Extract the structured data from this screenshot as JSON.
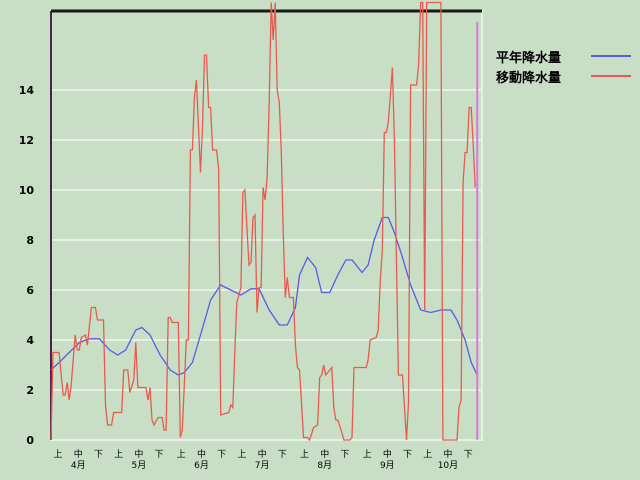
{
  "chart_data": {
    "type": "line",
    "title": "",
    "xlabel": "",
    "ylabel": "",
    "ylim": [
      0,
      17.2
    ],
    "yticks": [
      0,
      2,
      4,
      6,
      8,
      10,
      12,
      14
    ],
    "grid": true,
    "legend_position": "right",
    "x_dekad_labels": [
      "上",
      "中",
      "下"
    ],
    "x_months": [
      {
        "month": 4,
        "label": "4月"
      },
      {
        "month": 5,
        "label": "5月"
      },
      {
        "month": 6,
        "label": "6月"
      },
      {
        "month": 7,
        "label": "7月"
      },
      {
        "month": 8,
        "label": "8月"
      },
      {
        "month": 9,
        "label": "9月"
      },
      {
        "month": 10,
        "label": "10月"
      }
    ],
    "marker_date": "10-29",
    "series": [
      {
        "name": "平年降水量",
        "color": "#5a5ae6",
        "points": [
          [
            "04-01",
            2.8
          ],
          [
            "04-05",
            3.1
          ],
          [
            "04-10",
            3.5
          ],
          [
            "04-15",
            3.9
          ],
          [
            "04-20",
            4.05
          ],
          [
            "04-25",
            4.05
          ],
          [
            "04-30",
            3.6
          ],
          [
            "05-04",
            3.4
          ],
          [
            "05-08",
            3.6
          ],
          [
            "05-13",
            4.4
          ],
          [
            "05-16",
            4.5
          ],
          [
            "05-20",
            4.2
          ],
          [
            "05-25",
            3.4
          ],
          [
            "05-30",
            2.8
          ],
          [
            "06-03",
            2.6
          ],
          [
            "06-06",
            2.7
          ],
          [
            "06-10",
            3.1
          ],
          [
            "06-14",
            4.2
          ],
          [
            "06-19",
            5.6
          ],
          [
            "06-24",
            6.2
          ],
          [
            "06-29",
            6.0
          ],
          [
            "07-04",
            5.8
          ],
          [
            "07-09",
            6.05
          ],
          [
            "07-13",
            6.05
          ],
          [
            "07-18",
            5.2
          ],
          [
            "07-23",
            4.6
          ],
          [
            "07-27",
            4.6
          ],
          [
            "07-31",
            5.3
          ],
          [
            "08-02",
            6.6
          ],
          [
            "08-06",
            7.3
          ],
          [
            "08-10",
            6.9
          ],
          [
            "08-13",
            5.9
          ],
          [
            "08-17",
            5.9
          ],
          [
            "08-21",
            6.6
          ],
          [
            "08-25",
            7.2
          ],
          [
            "08-28",
            7.2
          ],
          [
            "09-02",
            6.7
          ],
          [
            "09-05",
            7.0
          ],
          [
            "09-08",
            8.0
          ],
          [
            "09-12",
            8.9
          ],
          [
            "09-15",
            8.9
          ],
          [
            "09-18",
            8.3
          ],
          [
            "09-22",
            7.3
          ],
          [
            "09-26",
            6.2
          ],
          [
            "10-01",
            5.2
          ],
          [
            "10-06",
            5.1
          ],
          [
            "10-11",
            5.2
          ],
          [
            "10-16",
            5.2
          ],
          [
            "10-19",
            4.8
          ],
          [
            "10-23",
            4.0
          ],
          [
            "10-26",
            3.1
          ],
          [
            "10-29",
            2.6
          ]
        ]
      },
      {
        "name": "移動降水量",
        "color": "#e85a50",
        "points": [
          [
            "04-01",
            0
          ],
          [
            "04-02",
            3.5
          ],
          [
            "04-05",
            3.5
          ],
          [
            "04-07",
            1.8
          ],
          [
            "04-08",
            1.8
          ],
          [
            "04-09",
            2.3
          ],
          [
            "04-10",
            1.6
          ],
          [
            "04-11",
            2.2
          ],
          [
            "04-13",
            4.2
          ],
          [
            "04-14",
            3.6
          ],
          [
            "04-15",
            3.6
          ],
          [
            "04-16",
            4.1
          ],
          [
            "04-18",
            4.2
          ],
          [
            "04-19",
            3.8
          ],
          [
            "04-21",
            5.3
          ],
          [
            "04-23",
            5.3
          ],
          [
            "04-24",
            4.8
          ],
          [
            "04-27",
            4.8
          ],
          [
            "04-28",
            1.4
          ],
          [
            "04-29",
            0.6
          ],
          [
            "05-01",
            0.6
          ],
          [
            "05-02",
            1.1
          ],
          [
            "05-06",
            1.1
          ],
          [
            "05-07",
            2.8
          ],
          [
            "05-09",
            2.8
          ],
          [
            "05-10",
            1.9
          ],
          [
            "05-12",
            2.4
          ],
          [
            "05-13",
            3.9
          ],
          [
            "05-14",
            2.1
          ],
          [
            "05-18",
            2.1
          ],
          [
            "05-19",
            1.6
          ],
          [
            "05-20",
            2.1
          ],
          [
            "05-21",
            0.8
          ],
          [
            "05-22",
            0.6
          ],
          [
            "05-24",
            0.9
          ],
          [
            "05-26",
            0.9
          ],
          [
            "05-27",
            0.4
          ],
          [
            "05-28",
            0.4
          ],
          [
            "05-29",
            4.9
          ],
          [
            "05-30",
            4.9
          ],
          [
            "05-31",
            4.7
          ],
          [
            "06-03",
            4.7
          ],
          [
            "06-04",
            0.1
          ],
          [
            "06-05",
            0.4
          ],
          [
            "06-07",
            4.0
          ],
          [
            "06-08",
            4.0
          ],
          [
            "06-09",
            11.6
          ],
          [
            "06-10",
            11.6
          ],
          [
            "06-11",
            13.7
          ],
          [
            "06-12",
            14.4
          ],
          [
            "06-14",
            10.7
          ],
          [
            "06-15",
            12.5
          ],
          [
            "06-16",
            15.4
          ],
          [
            "06-17",
            15.4
          ],
          [
            "06-18",
            13.3
          ],
          [
            "06-19",
            13.3
          ],
          [
            "06-20",
            11.6
          ],
          [
            "06-22",
            11.6
          ],
          [
            "06-23",
            10.8
          ],
          [
            "06-24",
            1.0
          ],
          [
            "06-28",
            1.1
          ],
          [
            "06-29",
            1.4
          ],
          [
            "06-30",
            1.3
          ],
          [
            "07-01",
            3.5
          ],
          [
            "07-02",
            5.5
          ],
          [
            "07-04",
            6.1
          ],
          [
            "07-05",
            9.9
          ],
          [
            "07-06",
            10.0
          ],
          [
            "07-07",
            8.5
          ],
          [
            "07-08",
            7.0
          ],
          [
            "07-09",
            7.1
          ],
          [
            "07-10",
            8.9
          ],
          [
            "07-11",
            9.0
          ],
          [
            "07-12",
            5.1
          ],
          [
            "07-13",
            6.1
          ],
          [
            "07-14",
            6.1
          ],
          [
            "07-15",
            10.1
          ],
          [
            "07-16",
            9.6
          ],
          [
            "07-17",
            10.5
          ],
          [
            "07-18",
            13.5
          ],
          [
            "07-19",
            17.5
          ],
          [
            "07-20",
            16.0
          ],
          [
            "07-21",
            17.5
          ],
          [
            "07-22",
            14.0
          ],
          [
            "07-23",
            13.5
          ],
          [
            "07-24",
            11.5
          ],
          [
            "07-25",
            8.2
          ],
          [
            "07-26",
            5.7
          ],
          [
            "07-27",
            6.5
          ],
          [
            "07-28",
            5.7
          ],
          [
            "07-30",
            5.7
          ],
          [
            "07-31",
            3.8
          ],
          [
            "08-01",
            2.9
          ],
          [
            "08-02",
            2.8
          ],
          [
            "08-03",
            1.5
          ],
          [
            "08-04",
            0.1
          ],
          [
            "08-06",
            0.1
          ],
          [
            "08-07",
            0
          ],
          [
            "08-09",
            0.5
          ],
          [
            "08-11",
            0.6
          ],
          [
            "08-12",
            2.5
          ],
          [
            "08-13",
            2.6
          ],
          [
            "08-14",
            3.0
          ],
          [
            "08-15",
            2.6
          ],
          [
            "08-17",
            2.8
          ],
          [
            "08-18",
            2.9
          ],
          [
            "08-19",
            1.3
          ],
          [
            "08-20",
            0.8
          ],
          [
            "08-21",
            0.8
          ],
          [
            "08-23",
            0.3
          ],
          [
            "08-24",
            0
          ],
          [
            "08-27",
            0
          ],
          [
            "08-28",
            0.1
          ],
          [
            "08-29",
            2.9
          ],
          [
            "09-04",
            2.9
          ],
          [
            "09-05",
            3.2
          ],
          [
            "09-06",
            4.0
          ],
          [
            "09-09",
            4.1
          ],
          [
            "09-10",
            4.4
          ],
          [
            "09-11",
            6.4
          ],
          [
            "09-12",
            7.6
          ],
          [
            "09-13",
            12.3
          ],
          [
            "09-14",
            12.3
          ],
          [
            "09-15",
            12.7
          ],
          [
            "09-17",
            14.9
          ],
          [
            "09-18",
            12.0
          ],
          [
            "09-19",
            7.3
          ],
          [
            "09-20",
            2.6
          ],
          [
            "09-22",
            2.6
          ],
          [
            "09-23",
            1.3
          ],
          [
            "09-24",
            0
          ],
          [
            "09-25",
            1.5
          ],
          [
            "09-26",
            14.2
          ],
          [
            "09-29",
            14.2
          ],
          [
            "09-30",
            15.0
          ],
          [
            "10-01",
            17.5
          ],
          [
            "10-02",
            17.5
          ],
          [
            "10-03",
            5.2
          ],
          [
            "10-04",
            17.5
          ],
          [
            "10-11",
            17.5
          ],
          [
            "10-12",
            0
          ],
          [
            "10-19",
            0
          ],
          [
            "10-20",
            1.3
          ],
          [
            "10-21",
            1.6
          ],
          [
            "10-22",
            10.3
          ],
          [
            "10-23",
            11.5
          ],
          [
            "10-24",
            11.5
          ],
          [
            "10-25",
            13.3
          ],
          [
            "10-26",
            13.3
          ],
          [
            "10-27",
            11.8
          ],
          [
            "10-28",
            10.1
          ]
        ]
      }
    ]
  },
  "colors": {
    "background": "#c8dfc6",
    "grid": "#e6f0e4",
    "marker": "#d878e0",
    "top_border": "#1a1a1a"
  }
}
